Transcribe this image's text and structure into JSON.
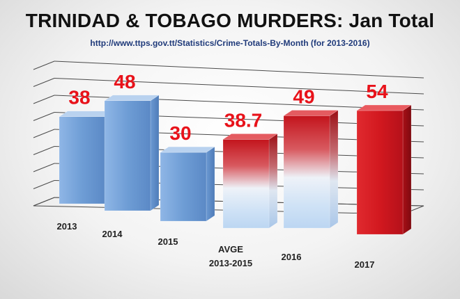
{
  "title": "TRINIDAD & TOBAGO MURDERS: Jan Total",
  "subtitle": "http://www.ttps.gov.tt/Statistics/Crime-Totals-By-Month   (for 2013-2016)",
  "colors": {
    "blue": "#6f9fd6",
    "red": "#d8262b",
    "label_red": "#e8121a"
  },
  "chart_data": {
    "type": "bar",
    "categories": [
      "2013",
      "2014",
      "2015",
      "AVGE 2013-2015",
      "2016",
      "2017"
    ],
    "category_lines": [
      [
        "2013"
      ],
      [
        "2014"
      ],
      [
        "2015"
      ],
      [
        "AVGE",
        "2013-2015"
      ],
      [
        "2016"
      ],
      [
        "2017"
      ]
    ],
    "values": [
      38,
      48,
      30,
      38.7,
      49,
      54
    ],
    "labels": [
      "38",
      "48",
      "30",
      "38.7",
      "49",
      "54"
    ],
    "styles": [
      "blue",
      "blue",
      "blue",
      "red-fade",
      "red-fade",
      "red"
    ],
    "ylim": [
      0,
      54
    ],
    "grid": true,
    "axis_ticks_shown": false
  }
}
